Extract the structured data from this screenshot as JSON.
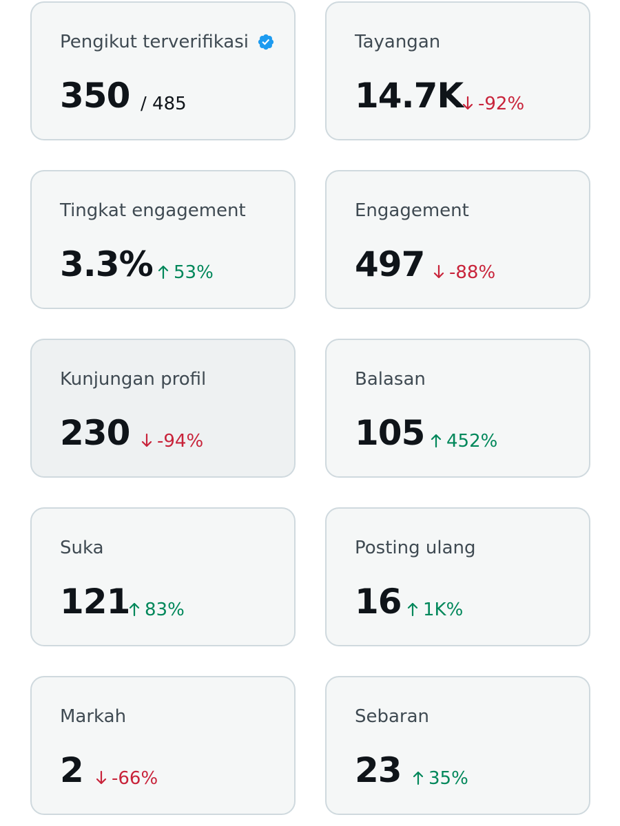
{
  "cards": [
    {
      "label": "Pengikut terverifikasi",
      "value": "350",
      "delta": "/ 485",
      "trend": "neutral",
      "verified_icon": "verified-badge-icon"
    },
    {
      "label": "Tayangan",
      "value": "14.7K",
      "delta": "-92%",
      "trend": "down"
    },
    {
      "label": "Tingkat engagement",
      "value": "3.3%",
      "delta": "53%",
      "trend": "up"
    },
    {
      "label": "Engagement",
      "value": "497",
      "delta": "-88%",
      "trend": "down"
    },
    {
      "label": "Kunjungan profil",
      "value": "230",
      "delta": "-94%",
      "trend": "down"
    },
    {
      "label": "Balasan",
      "value": "105",
      "delta": "452%",
      "trend": "up"
    },
    {
      "label": "Suka",
      "value": "121",
      "delta": "83%",
      "trend": "up"
    },
    {
      "label": "Posting ulang",
      "value": "16",
      "delta": "1K%",
      "trend": "up"
    },
    {
      "label": "Markah",
      "value": "2",
      "delta": "-66%",
      "trend": "down"
    },
    {
      "label": "Sebaran",
      "value": "23",
      "delta": "35%",
      "trend": "up"
    }
  ],
  "colors": {
    "up": "#00875a",
    "down": "#c8233a",
    "verified": "#1d9bf0",
    "card_border": "#cfd9de",
    "card_bg": "#f5f7f7"
  }
}
